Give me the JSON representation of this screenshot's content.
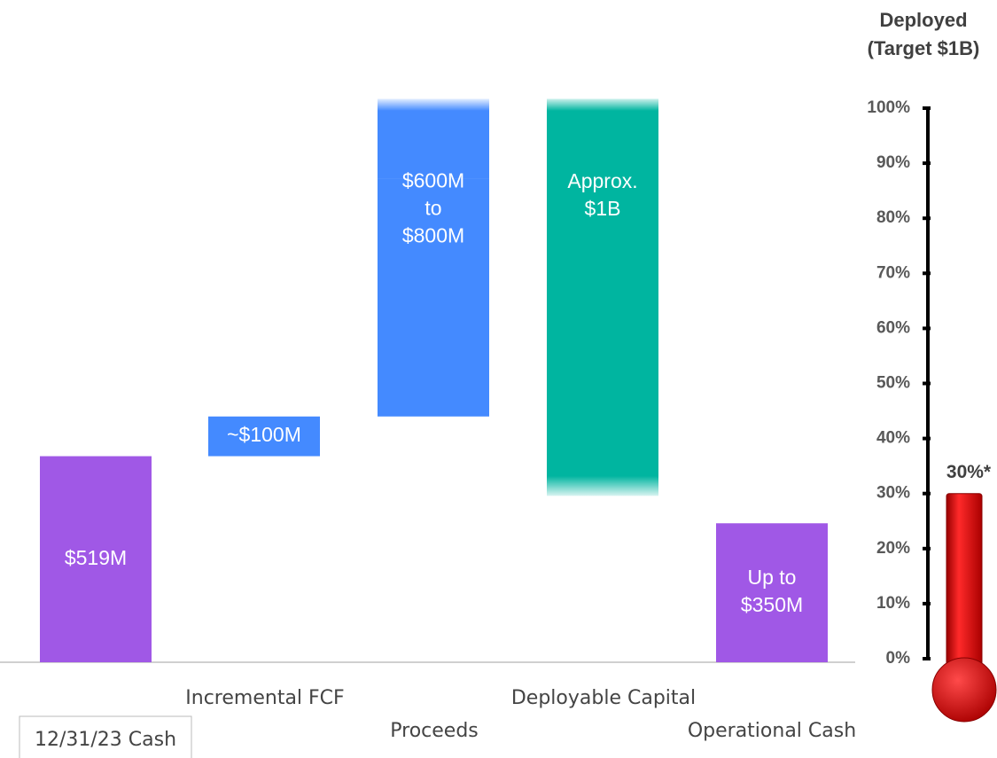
{
  "chart_data": [
    {
      "type": "waterfall",
      "categories": [
        "12/31/23 Cash",
        "Incremental FCF",
        "Proceeds",
        "Deployable Capital",
        "Operational Cash"
      ],
      "values": [
        519,
        100,
        600,
        1000,
        350
      ],
      "upper_values": [
        null,
        null,
        800,
        null,
        null
      ],
      "value_labels": [
        [
          "$519M"
        ],
        [
          "~$100M"
        ],
        [
          "$600M",
          "to",
          "$800M"
        ],
        [
          "Approx.",
          "$1B"
        ],
        [
          "Up to",
          "$350M"
        ]
      ],
      "colors": [
        "#a058e6",
        "#448aff",
        "#448aff",
        "#00b5a0",
        "#a058e6"
      ],
      "ylim": [
        0,
        1400
      ]
    },
    {
      "type": "gauge",
      "title": [
        "Deployed",
        "(Target $1B)"
      ],
      "ylim": [
        0,
        100
      ],
      "yticks": [
        {
          "value": 0,
          "label": "0%"
        },
        {
          "value": 10,
          "label": "10%"
        },
        {
          "value": 20,
          "label": "20%"
        },
        {
          "value": 30,
          "label": "30%"
        },
        {
          "value": 40,
          "label": "40%"
        },
        {
          "value": 50,
          "label": "50%"
        },
        {
          "value": 60,
          "label": "60%"
        },
        {
          "value": 70,
          "label": "70%"
        },
        {
          "value": 80,
          "label": "80%"
        },
        {
          "value": 90,
          "label": "90%"
        },
        {
          "value": 100,
          "label": "100%"
        }
      ],
      "value": 30,
      "value_label": "30%*",
      "color": "#e00000"
    }
  ]
}
